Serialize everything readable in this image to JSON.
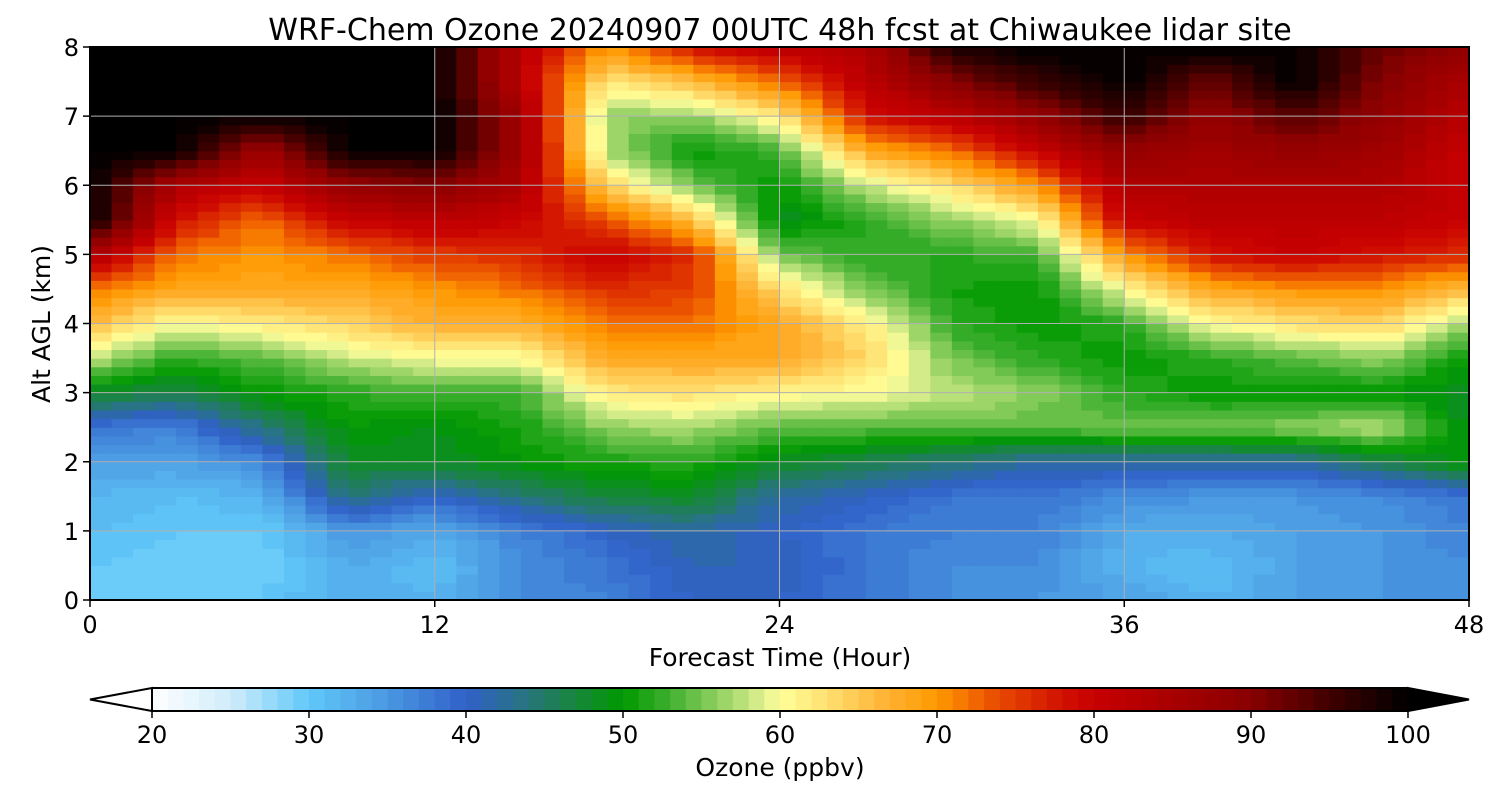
{
  "chart_data": {
    "type": "heatmap",
    "title": "WRF-Chem Ozone  20240907 00UTC 48h fcst at Chiwaukee lidar site",
    "xlabel": "Forecast Time (Hour)",
    "ylabel": "Alt AGL (km)",
    "xlim": [
      0,
      48
    ],
    "ylim": [
      0,
      8
    ],
    "xticks": [
      "0",
      "12",
      "24",
      "36",
      "48"
    ],
    "yticks": [
      "0",
      "1",
      "2",
      "3",
      "4",
      "5",
      "6",
      "7",
      "8"
    ],
    "grid": true,
    "x": [
      0,
      3,
      6,
      9,
      12,
      15,
      18,
      21,
      24,
      27,
      30,
      33,
      36,
      39,
      42,
      45,
      48
    ],
    "y": [
      0,
      0.5,
      1,
      1.5,
      2,
      2.5,
      3,
      3.5,
      4,
      4.5,
      5,
      5.5,
      6,
      6.5,
      7,
      7.5,
      8
    ],
    "z_by_time": [
      [
        30,
        30,
        31,
        32,
        34,
        38,
        48,
        58,
        66,
        72,
        84,
        100,
        100,
        100,
        100,
        100,
        100
      ],
      [
        29,
        29,
        30,
        31,
        34,
        37,
        46,
        52,
        60,
        68,
        72,
        78,
        84,
        100,
        100,
        100,
        100
      ],
      [
        30,
        29,
        30,
        32,
        36,
        44,
        50,
        54,
        62,
        68,
        70,
        72,
        80,
        86,
        100,
        100,
        100
      ],
      [
        33,
        33,
        35,
        44,
        48,
        50,
        52,
        58,
        64,
        68,
        72,
        80,
        88,
        100,
        100,
        100,
        100
      ],
      [
        32,
        31,
        33,
        40,
        48,
        49,
        53,
        60,
        67,
        70,
        75,
        82,
        90,
        100,
        100,
        100,
        100
      ],
      [
        36,
        36,
        37,
        44,
        50,
        51,
        53,
        60,
        67,
        72,
        76,
        80,
        84,
        86,
        86,
        82,
        82
      ],
      [
        37,
        38,
        40,
        47,
        51,
        56,
        62,
        68,
        72,
        76,
        80,
        74,
        64,
        57,
        56,
        62,
        70
      ],
      [
        40,
        41,
        42,
        48,
        52,
        57,
        63,
        68,
        72,
        75,
        76,
        66,
        55,
        50,
        56,
        66,
        78
      ],
      [
        40,
        41,
        40,
        42,
        48,
        54,
        61,
        68,
        68,
        63,
        55,
        48,
        50,
        53,
        62,
        72,
        82
      ],
      [
        38,
        38,
        38,
        40,
        46,
        54,
        60,
        64,
        62,
        55,
        52,
        52,
        58,
        68,
        78,
        82,
        84
      ],
      [
        36,
        36,
        37,
        38,
        44,
        54,
        58,
        55,
        52,
        51,
        52,
        56,
        63,
        72,
        82,
        90,
        98
      ],
      [
        35,
        36,
        37,
        38,
        42,
        54,
        56,
        52,
        50,
        50,
        53,
        60,
        70,
        80,
        88,
        96,
        100
      ],
      [
        34,
        32,
        33,
        36,
        42,
        55,
        52,
        50,
        52,
        60,
        70,
        80,
        84,
        88,
        96,
        100,
        100
      ],
      [
        32,
        31,
        33,
        35,
        42,
        55,
        50,
        52,
        60,
        68,
        78,
        82,
        84,
        86,
        88,
        92,
        100
      ],
      [
        34,
        34,
        34,
        35,
        42,
        56,
        50,
        54,
        63,
        70,
        80,
        82,
        84,
        88,
        94,
        100,
        100
      ],
      [
        35,
        35,
        35,
        36,
        46,
        58,
        50,
        56,
        64,
        70,
        78,
        82,
        84,
        86,
        88,
        90,
        92
      ],
      [
        36,
        36,
        37,
        38,
        50,
        48,
        48,
        50,
        56,
        66,
        76,
        80,
        80,
        80,
        82,
        84,
        88
      ]
    ],
    "colorbar": {
      "label": "Ozone  (ppbv)",
      "range": [
        20,
        100
      ],
      "ticks": [
        "20",
        "30",
        "40",
        "50",
        "60",
        "70",
        "80",
        "90",
        "100"
      ],
      "extend": "both"
    },
    "colormap": [
      [
        20,
        "#ffffff"
      ],
      [
        25,
        "#d0ecfa"
      ],
      [
        30,
        "#60c8fa"
      ],
      [
        35,
        "#4a98e0"
      ],
      [
        40,
        "#3060c8"
      ],
      [
        43,
        "#2a7090"
      ],
      [
        46,
        "#1e8050"
      ],
      [
        50,
        "#009900"
      ],
      [
        53,
        "#40b030"
      ],
      [
        56,
        "#90d060"
      ],
      [
        59,
        "#e0f090"
      ],
      [
        60,
        "#ffff99"
      ],
      [
        63,
        "#ffe070"
      ],
      [
        67,
        "#ffb030"
      ],
      [
        70,
        "#ff9900"
      ],
      [
        74,
        "#e84800"
      ],
      [
        78,
        "#d01000"
      ],
      [
        80,
        "#c80000"
      ],
      [
        85,
        "#a80000"
      ],
      [
        90,
        "#880000"
      ],
      [
        95,
        "#400000"
      ],
      [
        100,
        "#000000"
      ]
    ]
  }
}
